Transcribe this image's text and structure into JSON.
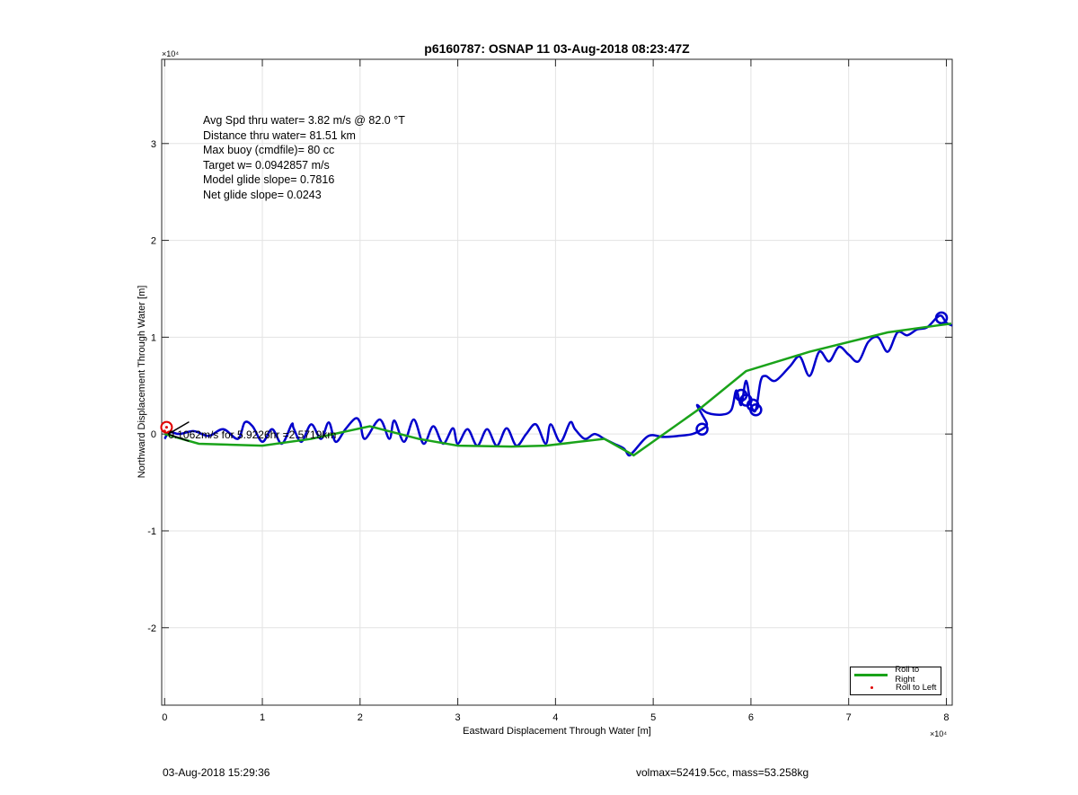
{
  "title": "p6160787: OSNAP 11 03-Aug-2018 08:23:47Z",
  "info_lines": [
    "Avg Spd thru water=  3.82 m/s @  82.0 °T",
    "Distance thru water= 81.51 km",
    "Max buoy (cmdfile)= 80 cc",
    "Target w= 0.0942857 m/s",
    "Model glide slope= 0.7816",
    "Net glide slope= 0.0243"
  ],
  "current_annotation": "0.1062m/s for 5.9226hr =2.5719km",
  "footer": {
    "date": "03-Aug-2018 15:29:36",
    "stats": "volmax=52419.5cc, mass=53.258kg"
  },
  "chart_data": {
    "type": "line",
    "title": "p6160787: OSNAP 11 03-Aug-2018 08:23:47Z",
    "xlabel": "Eastward Displacement Through Water [m]",
    "ylabel": "Northward Displacement Through Water [m]",
    "x_exponent": "×10⁴",
    "y_exponent": "×10⁴",
    "xlim": [
      -0.03,
      8.06
    ],
    "ylim": [
      -2.8,
      3.87
    ],
    "x_ticks": [
      0,
      1,
      2,
      3,
      4,
      5,
      6,
      7,
      8
    ],
    "y_ticks": [
      -2,
      -1,
      0,
      1,
      2,
      3
    ],
    "x_tick_labels": [
      "0",
      "1",
      "2",
      "3",
      "4",
      "5",
      "6",
      "7",
      "8"
    ],
    "y_tick_labels": [
      "-2",
      "-1",
      "0",
      "1",
      "2",
      "3"
    ],
    "grid": true,
    "legend_position": "bottom-right",
    "legend": [
      "Roll to Right",
      "Roll to Left"
    ],
    "colors": {
      "right": "#1aa31a",
      "left": "#e00000",
      "track": "#0000cc",
      "current": "#000000"
    },
    "series": [
      {
        "name": "Roll to Right",
        "x": [
          0.0,
          0.35,
          1.0,
          1.5,
          2.1,
          2.6,
          3.0,
          3.55,
          3.9,
          4.5,
          4.8,
          5.5,
          5.95,
          6.6,
          7.4,
          7.9,
          8.05
        ],
        "y": [
          0.0,
          -0.1,
          -0.12,
          -0.05,
          0.08,
          -0.05,
          -0.12,
          -0.13,
          -0.12,
          -0.05,
          -0.22,
          0.28,
          0.65,
          0.85,
          1.05,
          1.12,
          1.14
        ]
      },
      {
        "name": "Roll to Left",
        "x": [
          0.0,
          0.02,
          0.04
        ],
        "y": [
          0.03,
          0.07,
          0.02
        ]
      }
    ],
    "track": {
      "x": [
        0.0,
        0.05,
        0.15,
        0.3,
        0.45,
        0.6,
        0.75,
        0.82,
        0.9,
        1.0,
        1.1,
        1.2,
        1.3,
        1.32,
        1.4,
        1.5,
        1.6,
        1.68,
        1.75,
        1.85,
        1.95,
        2.0,
        2.05,
        2.2,
        2.3,
        2.35,
        2.45,
        2.55,
        2.65,
        2.75,
        2.85,
        2.95,
        3.0,
        3.1,
        3.2,
        3.3,
        3.4,
        3.5,
        3.6,
        3.7,
        3.8,
        3.9,
        3.95,
        4.05,
        4.15,
        4.2,
        4.3,
        4.4,
        4.5,
        4.6,
        4.7,
        4.75,
        4.8,
        4.95,
        5.1,
        5.25,
        5.4,
        5.5,
        5.55,
        5.5,
        5.45,
        5.55,
        5.7,
        5.8,
        5.85,
        5.9,
        5.95,
        6.0,
        6.05,
        6.1,
        6.15,
        6.25,
        6.4,
        6.5,
        6.6,
        6.7,
        6.8,
        6.9,
        7.0,
        7.1,
        7.2,
        7.3,
        7.4,
        7.5,
        7.6,
        7.7,
        7.8,
        7.9,
        7.95,
        8.0,
        8.06
      ],
      "y": [
        -0.05,
        0.02,
        0.0,
        0.03,
        -0.02,
        0.05,
        -0.05,
        0.12,
        0.08,
        -0.08,
        0.05,
        -0.1,
        0.1,
        0.06,
        -0.08,
        0.1,
        -0.05,
        0.12,
        -0.08,
        0.05,
        0.16,
        0.12,
        -0.05,
        0.15,
        -0.05,
        0.14,
        -0.08,
        0.15,
        -0.1,
        0.08,
        -0.1,
        0.06,
        -0.1,
        0.05,
        -0.12,
        0.05,
        -0.12,
        0.06,
        -0.12,
        0.0,
        0.1,
        -0.1,
        0.1,
        -0.08,
        0.12,
        0.05,
        -0.05,
        0.0,
        -0.05,
        -0.1,
        -0.15,
        -0.22,
        -0.18,
        -0.02,
        -0.03,
        -0.02,
        0.0,
        0.05,
        0.1,
        0.2,
        0.3,
        0.22,
        0.2,
        0.25,
        0.45,
        0.3,
        0.55,
        0.3,
        0.25,
        0.55,
        0.6,
        0.55,
        0.7,
        0.8,
        0.6,
        0.85,
        0.75,
        0.9,
        0.82,
        0.75,
        0.95,
        1.0,
        0.85,
        1.05,
        1.02,
        1.08,
        1.1,
        1.2,
        1.22,
        1.15,
        1.12
      ]
    },
    "current_vector": {
      "x": [
        0.0,
        0.25
      ],
      "y": [
        0.0,
        0.07
      ]
    }
  }
}
